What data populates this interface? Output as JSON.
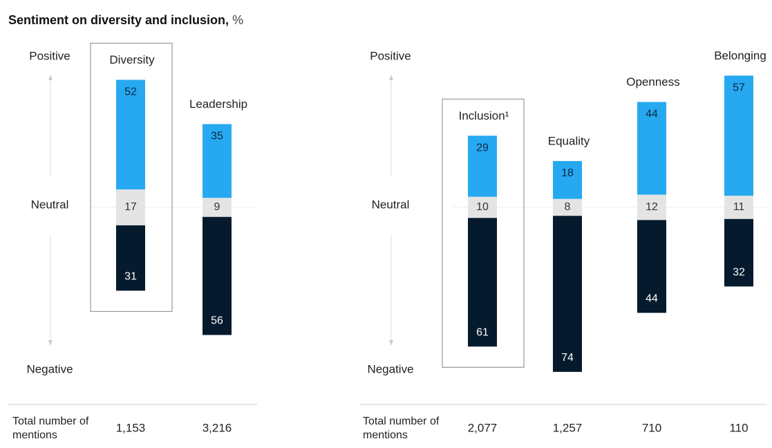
{
  "chart_data": [
    {
      "type": "diverging_bar",
      "title": "Sentiment on diversity and inclusion,",
      "title_unit": "%",
      "categories": [
        "Diversity",
        "Leadership"
      ],
      "highlight_index": 0,
      "series": [
        {
          "name": "Positive",
          "color": "#27a9f1",
          "values": [
            52,
            35
          ]
        },
        {
          "name": "Neutral",
          "color": "#e4e4e4",
          "values": [
            17,
            9
          ]
        },
        {
          "name": "Negative",
          "color": "#051a2d",
          "values": [
            31,
            56
          ]
        }
      ],
      "totals_label": "Total number of mentions",
      "totals": [
        1153,
        3216
      ],
      "totals_labels": [
        "1,153",
        "3,216"
      ]
    },
    {
      "type": "diverging_bar",
      "categories": [
        "Inclusion¹",
        "Equality",
        "Openness",
        "Belonging"
      ],
      "highlight_index": 0,
      "series": [
        {
          "name": "Positive",
          "color": "#27a9f1",
          "values": [
            29,
            18,
            44,
            57
          ]
        },
        {
          "name": "Neutral",
          "color": "#e4e4e4",
          "values": [
            10,
            8,
            12,
            11
          ]
        },
        {
          "name": "Negative",
          "color": "#051a2d",
          "values": [
            61,
            74,
            44,
            32
          ]
        }
      ],
      "totals_label": "Total number of mentions",
      "totals": [
        2077,
        1257,
        710,
        110
      ],
      "totals_labels": [
        "2,077",
        "1,257",
        "710",
        "110"
      ]
    }
  ]
}
